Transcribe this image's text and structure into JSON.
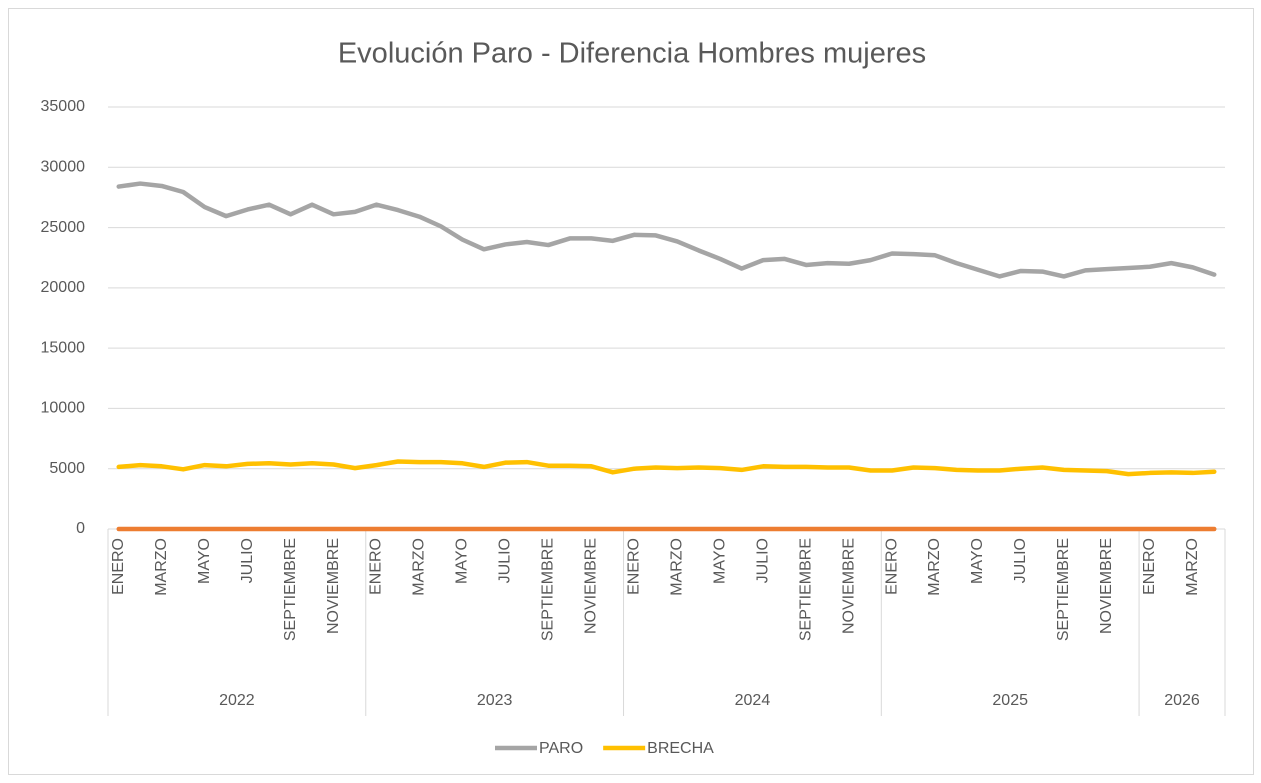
{
  "chart_data": {
    "type": "line",
    "title": "Evolución Paro - Diferencia Hombres mujeres",
    "groups": [
      {
        "label": "2022",
        "categories": [
          "ENERO",
          null,
          "MARZO",
          null,
          "MAYO",
          null,
          "JULIO",
          null,
          "SEPTIEMBRE",
          null,
          "NOVIEMBRE",
          null
        ]
      },
      {
        "label": "2023",
        "categories": [
          "ENERO",
          null,
          "MARZO",
          null,
          "MAYO",
          null,
          "JULIO",
          null,
          "SEPTIEMBRE",
          null,
          "NOVIEMBRE",
          null
        ]
      },
      {
        "label": "2024",
        "categories": [
          "ENERO",
          null,
          "MARZO",
          null,
          "MAYO",
          null,
          "JULIO",
          null,
          "SEPTIEMBRE",
          null,
          "NOVIEMBRE",
          null
        ]
      },
      {
        "label": "2025",
        "categories": [
          "ENERO",
          null,
          "MARZO",
          null,
          "MAYO",
          null,
          "JULIO",
          null,
          "SEPTIEMBRE",
          null,
          "NOVIEMBRE",
          null
        ]
      },
      {
        "label": "2026",
        "categories": [
          "ENERO",
          null,
          "MARZO",
          null
        ]
      }
    ],
    "series": [
      {
        "name": "PARO",
        "color": "#a5a5a5",
        "values": [
          28400,
          28650,
          28450,
          27950,
          26700,
          25950,
          26500,
          26900,
          26100,
          26900,
          26100,
          26300,
          26900,
          26450,
          25900,
          25100,
          24000,
          23200,
          23600,
          23800,
          23550,
          24100,
          24100,
          23900,
          24400,
          24350,
          23850,
          23100,
          22400,
          21600,
          22300,
          22400,
          21900,
          22050,
          22000,
          22300,
          22850,
          22800,
          22700,
          22050,
          21500,
          20950,
          21400,
          21350,
          20950,
          21450,
          21550,
          21650,
          21750,
          22050,
          21700,
          21100
        ]
      },
      {
        "name": "BRECHA",
        "color": "#ffc000",
        "values": [
          5150,
          5300,
          5200,
          4950,
          5300,
          5200,
          5400,
          5450,
          5350,
          5450,
          5350,
          5050,
          5300,
          5600,
          5550,
          5550,
          5450,
          5150,
          5500,
          5550,
          5250,
          5250,
          5200,
          4700,
          5000,
          5100,
          5050,
          5100,
          5050,
          4900,
          5200,
          5150,
          5150,
          5100,
          5100,
          4850,
          4850,
          5100,
          5050,
          4900,
          4850,
          4850,
          5000,
          5100,
          4900,
          4850,
          4800,
          4550,
          4650,
          4700,
          4650,
          4750
        ]
      },
      {
        "color": "#ed7d31",
        "values": [
          0,
          0,
          0,
          0,
          0,
          0,
          0,
          0,
          0,
          0,
          0,
          0,
          0,
          0,
          0,
          0,
          0,
          0,
          0,
          0,
          0,
          0,
          0,
          0,
          0,
          0,
          0,
          0,
          0,
          0,
          0,
          0,
          0,
          0,
          0,
          0,
          0,
          0,
          0,
          0,
          0,
          0,
          0,
          0,
          0,
          0,
          0,
          0,
          0,
          0,
          0,
          0
        ]
      }
    ],
    "ylim": [
      0,
      35000
    ],
    "yticks": [
      0,
      5000,
      10000,
      15000,
      20000,
      25000,
      30000,
      35000
    ],
    "grid": true,
    "legend": "bottom"
  }
}
